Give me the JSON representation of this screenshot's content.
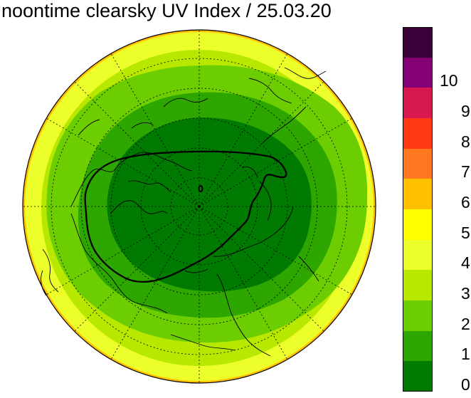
{
  "title": "noontime clearsky UV Index / 25.03.20",
  "legend": {
    "labels": [
      "0",
      "1",
      "2",
      "3",
      "4",
      "5",
      "6",
      "7",
      "8",
      "9",
      "10"
    ],
    "colors": [
      "#007a00",
      "#2ea600",
      "#6cce00",
      "#b8e800",
      "#ecff2a",
      "#ffff00",
      "#ffc000",
      "#ff7820",
      "#ff3a12",
      "#d81850",
      "#860075",
      "#3a0038"
    ]
  },
  "map": {
    "projection": "north polar stereographic",
    "zone_colors": [
      "#007a00",
      "#2ea600",
      "#6cce00",
      "#b8e800",
      "#ecff2a",
      "#ffc000"
    ],
    "marker": "ozone-hole contour",
    "coastline_color": "#000000"
  }
}
